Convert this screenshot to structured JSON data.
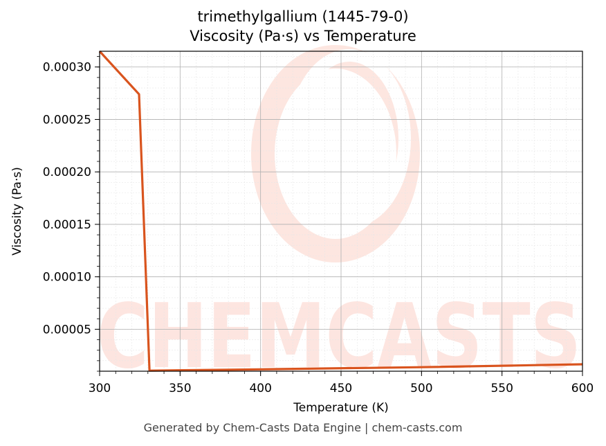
{
  "chart_data": {
    "type": "line",
    "title": "trimethylgallium (1445-79-0)",
    "subtitle": "Viscosity (Pa·s) vs Temperature",
    "xlabel": "Temperature (K)",
    "ylabel": "Viscosity (Pa·s)",
    "xlim": [
      300,
      600
    ],
    "ylim": [
      1e-05,
      0.000315
    ],
    "x_ticks": [
      300,
      350,
      400,
      450,
      500,
      550,
      600
    ],
    "x_tick_labels": [
      "300",
      "350",
      "400",
      "450",
      "500",
      "550",
      "600"
    ],
    "y_ticks": [
      5e-05,
      0.0001,
      0.00015,
      0.0002,
      0.00025,
      0.0003
    ],
    "y_tick_labels": [
      "0.00005",
      "0.00010",
      "0.00015",
      "0.00020",
      "0.00025",
      "0.00030"
    ],
    "grid": true,
    "series": [
      {
        "color": "#d9541e",
        "x": [
          300,
          324.5,
          331,
          400,
          500,
          600
        ],
        "y": [
          0.000315,
          0.000274,
          1.05e-05,
          1.18e-05,
          1.38e-05,
          1.66e-05
        ]
      }
    ],
    "watermark": "CHEMCASTS"
  },
  "footer": "Generated by Chem-Casts Data Engine | chem-casts.com"
}
